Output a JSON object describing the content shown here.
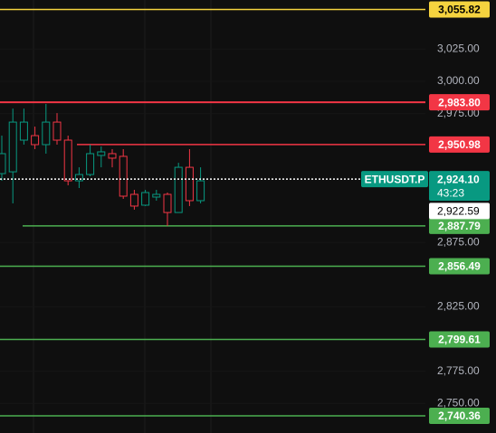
{
  "chart_data": {
    "type": "candlestick",
    "ylim": [
      2727,
      3063.2
    ],
    "yticks": [
      {
        "value": 3025,
        "label": "3,025.00"
      },
      {
        "value": 3000,
        "label": "3,000.00"
      },
      {
        "value": 2975,
        "label": "2,975.00"
      },
      {
        "value": 2875,
        "label": "2,875.00"
      },
      {
        "value": 2825,
        "label": "2,825.00"
      },
      {
        "value": 2775,
        "label": "2,775.00"
      },
      {
        "value": 2750,
        "label": "2,750.00"
      }
    ],
    "up_color": "#089981",
    "down_color": "#f23645",
    "candles": [
      {
        "open": 2928.4,
        "high": 2957.9,
        "low": 2922.8,
        "close": 2943.9
      },
      {
        "open": 2929.8,
        "high": 2978.9,
        "low": 2905.3,
        "close": 2968.4
      },
      {
        "open": 2954.4,
        "high": 2978.9,
        "low": 2950.9,
        "close": 2968.4
      },
      {
        "open": 2957.9,
        "high": 2964.9,
        "low": 2947.4,
        "close": 2950.9
      },
      {
        "open": 2950.9,
        "high": 2982.5,
        "low": 2943.9,
        "close": 2968.4
      },
      {
        "open": 2968.4,
        "high": 2975.4,
        "low": 2950.9,
        "close": 2954.4
      },
      {
        "open": 2954.4,
        "high": 2957.9,
        "low": 2919.3,
        "close": 2922.8
      },
      {
        "open": 2922.8,
        "high": 2933.3,
        "low": 2917.2,
        "close": 2927.7
      },
      {
        "open": 2927.7,
        "high": 2950.9,
        "low": 2926.3,
        "close": 2943.9
      },
      {
        "open": 2942.5,
        "high": 2949.5,
        "low": 2933.3,
        "close": 2945.3
      },
      {
        "open": 2943.9,
        "high": 2947.4,
        "low": 2933.3,
        "close": 2940.4
      },
      {
        "open": 2941.8,
        "high": 2947.4,
        "low": 2908.8,
        "close": 2910.9
      },
      {
        "open": 2912.3,
        "high": 2915.8,
        "low": 2900.4,
        "close": 2903.2
      },
      {
        "open": 2903.9,
        "high": 2915.8,
        "low": 2903.2,
        "close": 2913.7
      },
      {
        "open": 2910.2,
        "high": 2915.8,
        "low": 2907.4,
        "close": 2912.3
      },
      {
        "open": 2912.3,
        "high": 2913.7,
        "low": 2887.7,
        "close": 2898.2
      },
      {
        "open": 2898.2,
        "high": 2936.8,
        "low": 2898.2,
        "close": 2933.3
      },
      {
        "open": 2933.3,
        "high": 2947.4,
        "low": 2903.2,
        "close": 2907.4
      },
      {
        "open": 2907.4,
        "high": 2933.3,
        "low": 2905.3,
        "close": 2922.8
      }
    ],
    "levels": [
      {
        "value": 3055.82,
        "label": "3,055.82",
        "color": "#f5d33f"
      },
      {
        "value": 2983.8,
        "label": "2,983.80",
        "color": "#f23645"
      },
      {
        "value": 2950.98,
        "label": "2,950.98",
        "color": "#f23645"
      },
      {
        "value": 2887.79,
        "label": "2,887.79",
        "color": "#4caf50"
      },
      {
        "value": 2856.49,
        "label": "2,856.49",
        "color": "#4caf50"
      },
      {
        "value": 2799.61,
        "label": "2,799.61",
        "color": "#4caf50"
      },
      {
        "value": 2740.36,
        "label": "2,740.36",
        "color": "#4caf50"
      }
    ],
    "last_price": {
      "name": "ETHUSDT.P",
      "value": 2924.1,
      "label": "2,924.10",
      "countdown": "43:23",
      "color": "#089981"
    },
    "mark_price": {
      "value": 2922.59,
      "label": "2,922.59"
    }
  }
}
